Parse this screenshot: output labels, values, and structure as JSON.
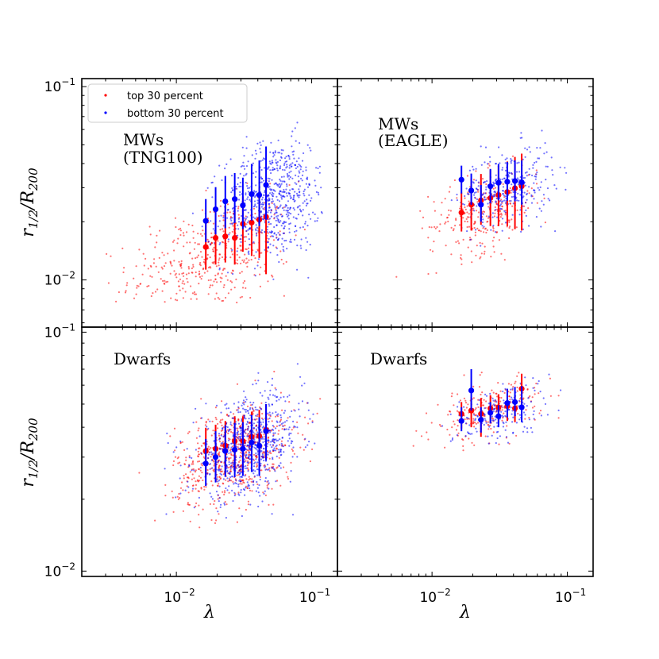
{
  "chart_data": {
    "type": "scatter",
    "layout": "2x2 grid with shared axes",
    "xlabel": "λ",
    "ylabel": "r_{1/2}/R_{200}",
    "xscale": "log",
    "yscale": "log",
    "xlim": [
      0.002,
      0.155
    ],
    "x_tick_labels": [
      "10^-2",
      "10^-1"
    ],
    "y_tick_labels": [
      "10^-2",
      "10^-1"
    ],
    "legend": {
      "location": "upper-left of top-left panel",
      "entries": [
        {
          "label": "top 30 percent",
          "color": "#ff0000"
        },
        {
          "label": "bottom 30 percent",
          "color": "#0000ff"
        }
      ]
    },
    "colors": {
      "top": "#ff0000",
      "bottom": "#0000ff"
    },
    "panels": [
      {
        "text": [
          "MWs",
          "(TNG100)"
        ],
        "ylim": [
          0.0057,
          0.11
        ],
        "clouds": [
          {
            "series": "top",
            "n": 460,
            "x_center": 0.018,
            "x_logsd": 0.3,
            "x_range": [
              0.0015,
              0.09
            ],
            "y_center": 0.013,
            "y_logsd": 0.14,
            "y_range": [
              0.0075,
              0.045
            ]
          },
          {
            "series": "bottom",
            "n": 700,
            "x_center": 0.052,
            "x_logsd": 0.19,
            "x_range": [
              0.008,
              0.12
            ],
            "y_center": 0.026,
            "y_logsd": 0.15,
            "y_range": [
              0.0085,
              0.068
            ]
          }
        ],
        "bins": [
          {
            "series": "top",
            "x": [
              0.0165,
              0.0195,
              0.023,
              0.027,
              0.031,
              0.036,
              0.041,
              0.046
            ],
            "y": [
              0.0148,
              0.0165,
              0.0168,
              0.0165,
              0.0195,
              0.0198,
              0.0205,
              0.0212
            ],
            "yerr_lo": [
              0.0035,
              0.0045,
              0.0045,
              0.0045,
              0.0055,
              0.0065,
              0.0075,
              0.0105
            ],
            "yerr_hi": [
              0.006,
              0.007,
              0.007,
              0.007,
              0.0075,
              0.0085,
              0.0095,
              0.0115
            ]
          },
          {
            "series": "bottom",
            "x": [
              0.0165,
              0.0195,
              0.023,
              0.027,
              0.031,
              0.036,
              0.041,
              0.046
            ],
            "y": [
              0.0202,
              0.0232,
              0.0255,
              0.0262,
              0.0243,
              0.0278,
              0.0275,
              0.031
            ],
            "yerr_lo": [
              0.0045,
              0.006,
              0.007,
              0.0065,
              0.006,
              0.0075,
              0.0085,
              0.0105
            ],
            "yerr_hi": [
              0.006,
              0.007,
              0.009,
              0.0095,
              0.0095,
              0.012,
              0.014,
              0.018
            ]
          }
        ]
      },
      {
        "text": [
          "MWs",
          "(EAGLE)"
        ],
        "ylim": [
          0.0057,
          0.11
        ],
        "clouds": [
          {
            "series": "top",
            "n": 260,
            "x_center": 0.024,
            "x_logsd": 0.2,
            "x_range": [
              0.003,
              0.08
            ],
            "y_center": 0.022,
            "y_logsd": 0.1,
            "y_range": [
              0.0095,
              0.055
            ]
          },
          {
            "series": "bottom",
            "n": 330,
            "x_center": 0.036,
            "x_logsd": 0.17,
            "x_range": [
              0.012,
              0.1
            ],
            "y_center": 0.03,
            "y_logsd": 0.1,
            "y_range": [
              0.014,
              0.065
            ]
          }
        ],
        "bins": [
          {
            "series": "top",
            "x": [
              0.0165,
              0.0195,
              0.023,
              0.027,
              0.031,
              0.036,
              0.041,
              0.046
            ],
            "y": [
              0.0223,
              0.0245,
              0.0258,
              0.0265,
              0.0275,
              0.0285,
              0.0298,
              0.0305
            ],
            "yerr_lo": [
              0.0045,
              0.0065,
              0.0065,
              0.0075,
              0.0085,
              0.0095,
              0.0115,
              0.0125
            ],
            "yerr_hi": [
              0.006,
              0.009,
              0.0095,
              0.0105,
              0.0115,
              0.0125,
              0.0135,
              0.0145
            ]
          },
          {
            "series": "bottom",
            "x": [
              0.0165,
              0.0195,
              0.023,
              0.027,
              0.031,
              0.036,
              0.041,
              0.046
            ],
            "y": [
              0.033,
              0.029,
              0.0245,
              0.0305,
              0.0318,
              0.0322,
              0.0325,
              0.032
            ],
            "yerr_lo": [
              0.005,
              0.0045,
              0.0045,
              0.0055,
              0.006,
              0.0065,
              0.007,
              0.0075
            ],
            "yerr_hi": [
              0.006,
              0.0065,
              0.0065,
              0.007,
              0.008,
              0.0085,
              0.009,
              0.0095
            ]
          }
        ]
      },
      {
        "text": [
          "Dwarfs"
        ],
        "ylim": [
          0.0095,
          0.105
        ],
        "clouds": [
          {
            "series": "top",
            "n": 700,
            "x_center": 0.027,
            "x_logsd": 0.22,
            "x_range": [
              0.002,
              0.12
            ],
            "y_center": 0.031,
            "y_logsd": 0.1,
            "y_range": [
              0.011,
              0.075
            ]
          },
          {
            "series": "bottom",
            "n": 700,
            "x_center": 0.034,
            "x_logsd": 0.2,
            "x_range": [
              0.003,
              0.13
            ],
            "y_center": 0.033,
            "y_logsd": 0.1,
            "y_range": [
              0.016,
              0.075
            ]
          }
        ],
        "bins": [
          {
            "series": "top",
            "x": [
              0.0165,
              0.0195,
              0.023,
              0.027,
              0.031,
              0.036,
              0.041,
              0.046
            ],
            "y": [
              0.0318,
              0.0325,
              0.0335,
              0.035,
              0.035,
              0.0365,
              0.0368,
              0.039
            ],
            "yerr_lo": [
              0.007,
              0.0075,
              0.0075,
              0.008,
              0.008,
              0.0085,
              0.0085,
              0.0095
            ],
            "yerr_hi": [
              0.008,
              0.0085,
              0.009,
              0.0095,
              0.0095,
              0.01,
              0.0105,
              0.011
            ]
          },
          {
            "series": "bottom",
            "x": [
              0.0165,
              0.0195,
              0.023,
              0.027,
              0.031,
              0.036,
              0.041,
              0.046
            ],
            "y": [
              0.0282,
              0.03,
              0.0318,
              0.0322,
              0.0325,
              0.0345,
              0.0335,
              0.0385
            ],
            "yerr_lo": [
              0.0055,
              0.0065,
              0.007,
              0.0075,
              0.0075,
              0.0085,
              0.0085,
              0.0095
            ],
            "yerr_hi": [
              0.0075,
              0.0085,
              0.009,
              0.0095,
              0.0095,
              0.0105,
              0.0105,
              0.0115
            ]
          }
        ]
      },
      {
        "text": [
          "Dwarfs"
        ],
        "ylim": [
          0.0095,
          0.105
        ],
        "clouds": [
          {
            "series": "top",
            "n": 220,
            "x_center": 0.026,
            "x_logsd": 0.2,
            "x_range": [
              0.003,
              0.09
            ],
            "y_center": 0.047,
            "y_logsd": 0.06,
            "y_range": [
              0.032,
              0.07
            ]
          },
          {
            "series": "bottom",
            "n": 180,
            "x_center": 0.032,
            "x_logsd": 0.17,
            "x_range": [
              0.008,
              0.1
            ],
            "y_center": 0.046,
            "y_logsd": 0.06,
            "y_range": [
              0.033,
              0.07
            ]
          }
        ],
        "bins": [
          {
            "series": "top",
            "x": [
              0.0165,
              0.0195,
              0.023,
              0.027,
              0.031,
              0.036,
              0.041,
              0.046
            ],
            "y": [
              0.0455,
              0.047,
              0.0455,
              0.048,
              0.0485,
              0.049,
              0.048,
              0.058
            ],
            "yerr_lo": [
              0.006,
              0.007,
              0.009,
              0.0065,
              0.0065,
              0.0065,
              0.006,
              0.0095
            ],
            "yerr_hi": [
              0.0055,
              0.0065,
              0.0075,
              0.0065,
              0.0065,
              0.0065,
              0.006,
              0.009
            ]
          },
          {
            "series": "bottom",
            "x": [
              0.0165,
              0.0195,
              0.023,
              0.027,
              0.031,
              0.036,
              0.041,
              0.046
            ],
            "y": [
              0.0425,
              0.057,
              0.043,
              0.046,
              0.0445,
              0.0505,
              0.051,
              0.0485
            ],
            "yerr_lo": [
              0.004,
              0.01,
              0.005,
              0.0045,
              0.0045,
              0.0065,
              0.0065,
              0.0065
            ],
            "yerr_hi": [
              0.006,
              0.013,
              0.0055,
              0.005,
              0.005,
              0.0075,
              0.008,
              0.011
            ]
          }
        ]
      }
    ]
  }
}
